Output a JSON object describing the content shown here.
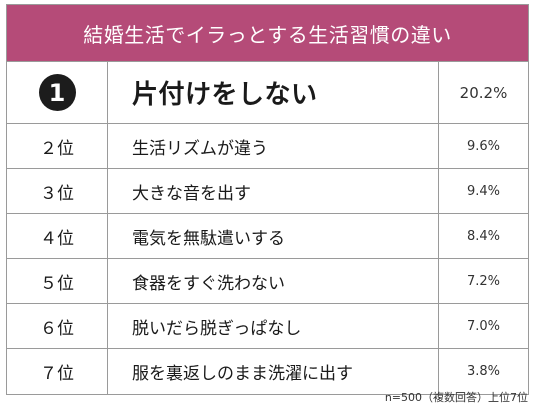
{
  "title": "結婚生活でイラっとする生活習慣の違い",
  "rows": [
    {
      "rank": "1",
      "item": "片付けをしない",
      "percent": "20.2%"
    },
    {
      "rank": "２位",
      "item": "生活リズムが違う",
      "percent": "9.6%"
    },
    {
      "rank": "３位",
      "item": "大きな音を出す",
      "percent": "9.4%"
    },
    {
      "rank": "４位",
      "item": "電気を無駄遣いする",
      "percent": "8.4%"
    },
    {
      "rank": "５位",
      "item": "食器をすぐ洗わない",
      "percent": "7.2%"
    },
    {
      "rank": "６位",
      "item": "脱いだら脱ぎっぱなし",
      "percent": "7.0%"
    },
    {
      "rank": "７位",
      "item": "服を裏返しのまま洗濯に出す",
      "percent": "3.8%"
    }
  ],
  "footnote": "n=500（複数回答）上位7位",
  "colors": {
    "title_background": "#b54b78",
    "title_text": "#ffffff",
    "first_place_badge": "#1c1c1c",
    "border": "#9a9a9a"
  },
  "icons": {
    "first_place": "number-one-circle-icon"
  }
}
